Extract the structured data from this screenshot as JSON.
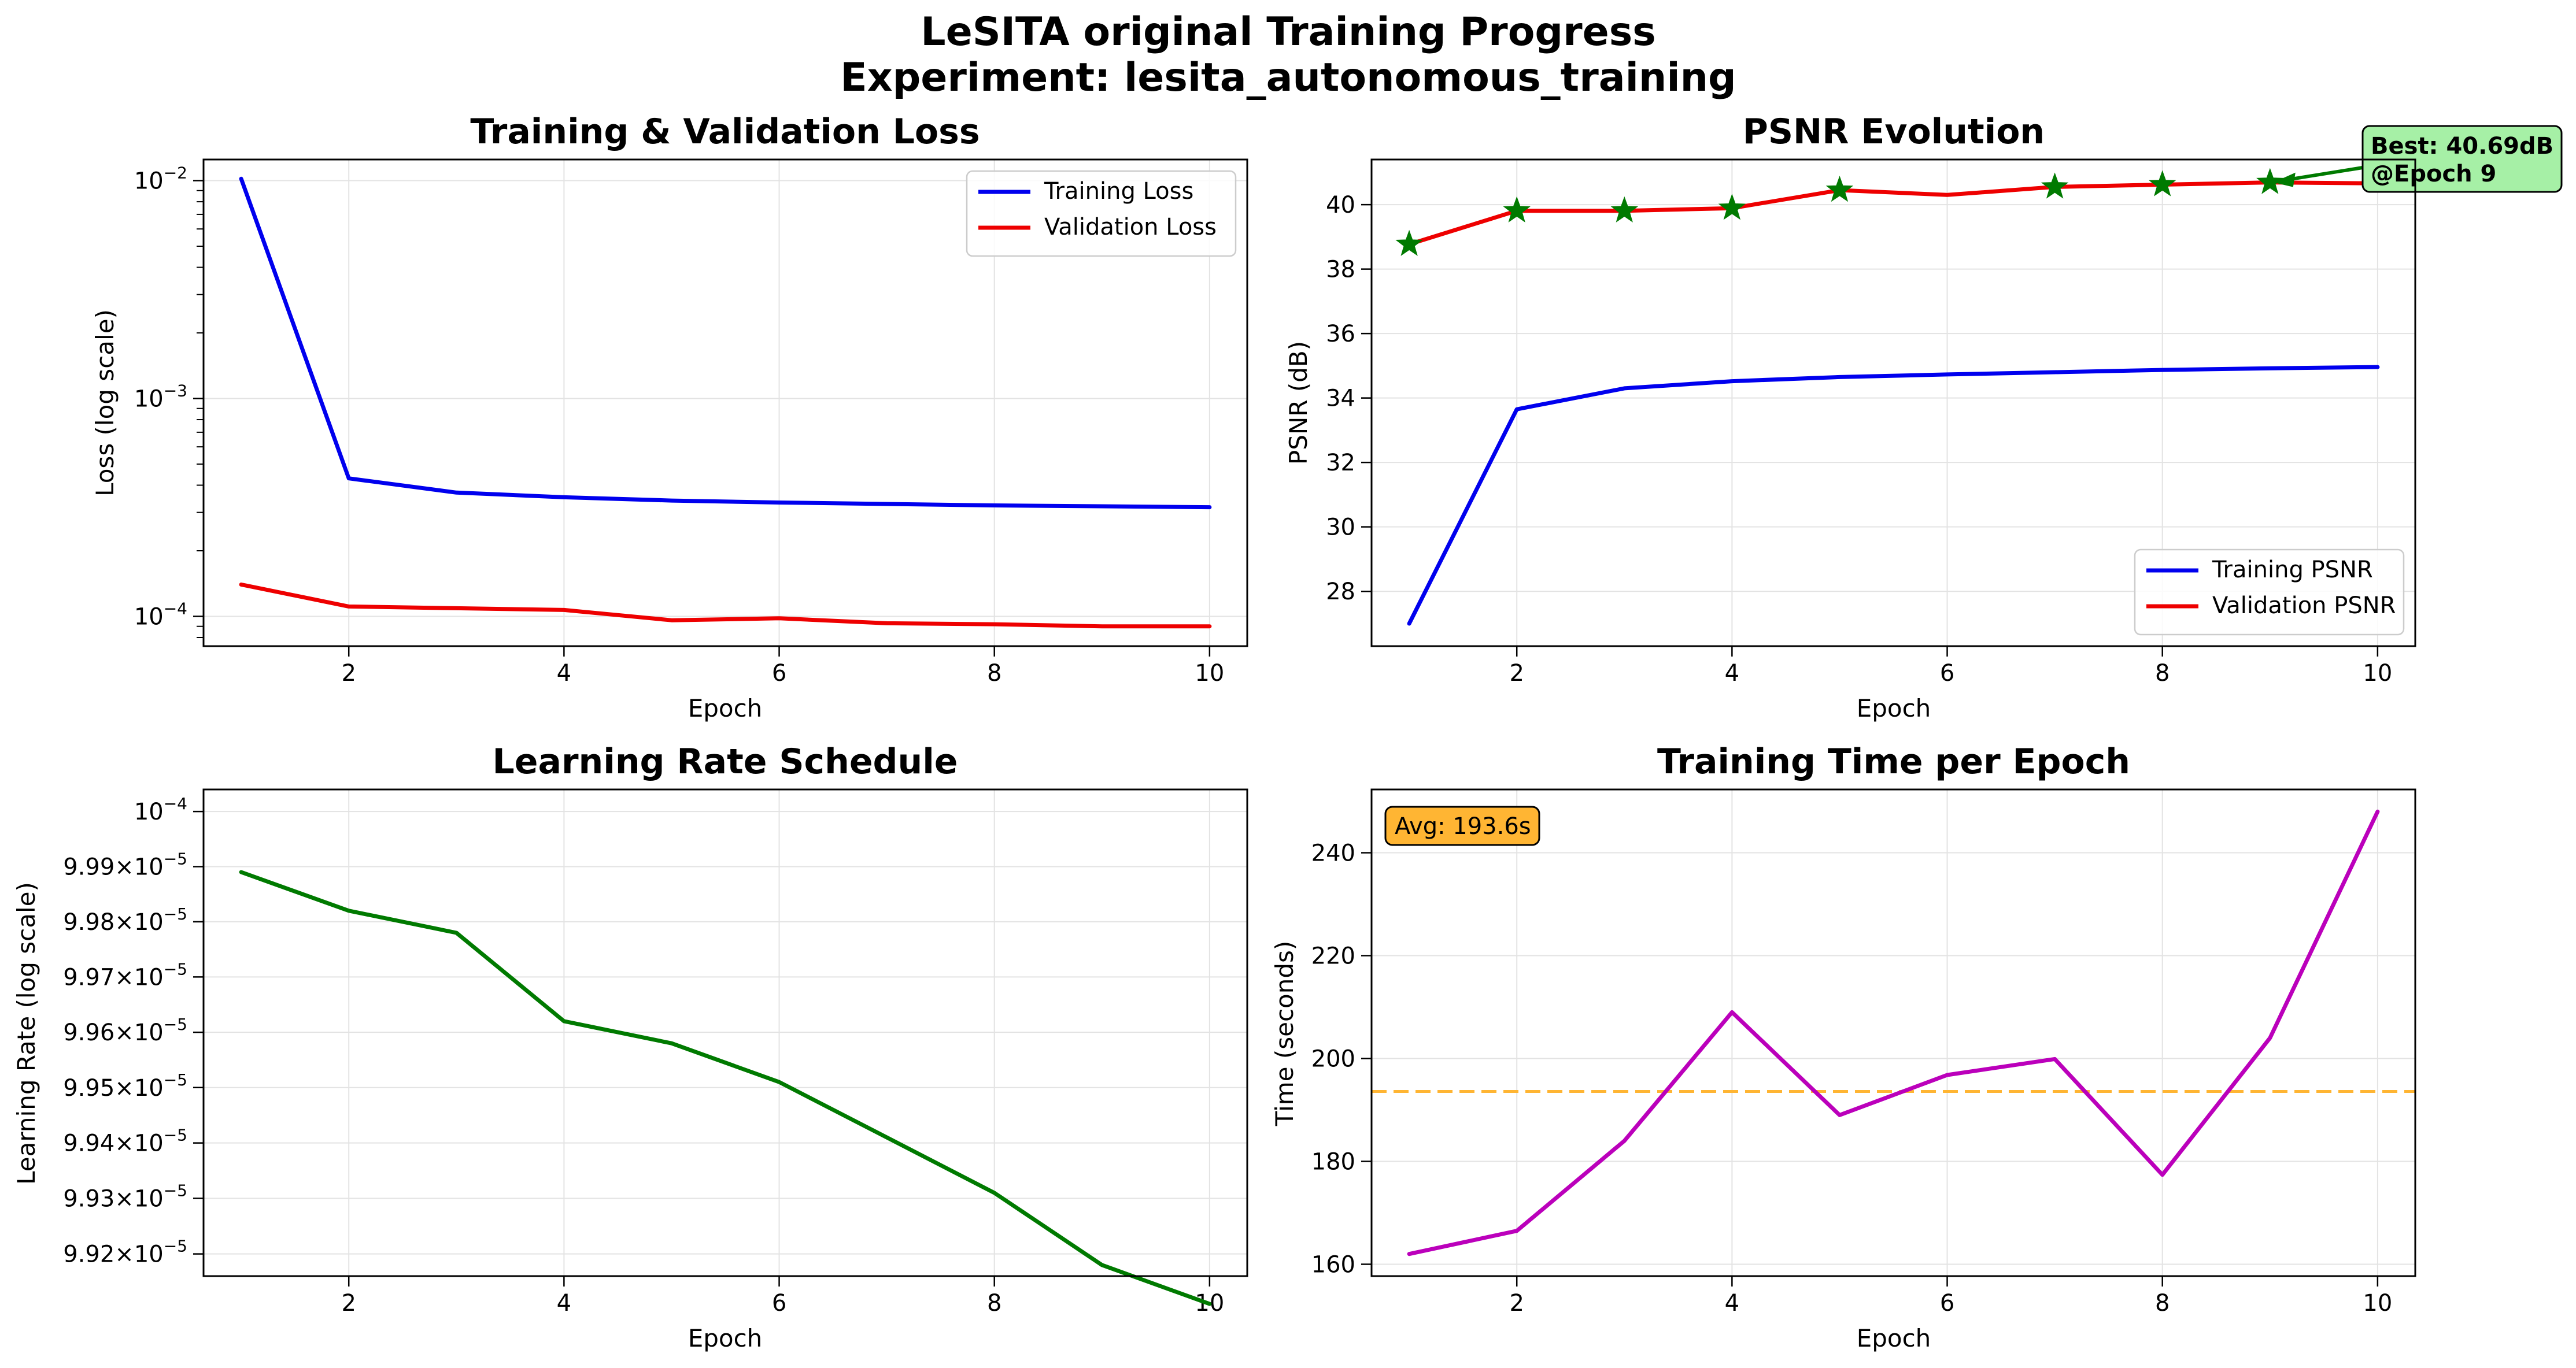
{
  "figure": {
    "title_line1": "LeSITA original Training Progress",
    "title_line2": "Experiment: lesita_autonomous_training"
  },
  "chart_data": [
    {
      "id": "loss",
      "type": "line",
      "title": "Training & Validation Loss",
      "xlabel": "Epoch",
      "ylabel": "Loss (log scale)",
      "yscale": "log",
      "xlim": [
        0.65,
        10.35
      ],
      "ylim": [
        7.3e-05,
        0.0125
      ],
      "xticks": [
        2,
        4,
        6,
        8,
        10
      ],
      "yticks": [
        {
          "value": 0.0001,
          "base": "10",
          "exp": "−4"
        },
        {
          "value": 0.001,
          "base": "10",
          "exp": "−3"
        },
        {
          "value": 0.01,
          "base": "10",
          "exp": "−2"
        }
      ],
      "grid": true,
      "legend_position": "top-right",
      "x": [
        1,
        2,
        3,
        4,
        5,
        6,
        7,
        8,
        9,
        10
      ],
      "series": [
        {
          "name": "Training Loss",
          "color": "#0000ee",
          "values": [
            0.0102,
            0.00043,
            0.00037,
            0.000352,
            0.00034,
            0.000333,
            0.000328,
            0.000323,
            0.00032,
            0.000317
          ]
        },
        {
          "name": "Validation Loss",
          "color": "#ee0000",
          "values": [
            0.00014,
            0.000111,
            0.000109,
            0.000107,
            9.6e-05,
            9.8e-05,
            9.3e-05,
            9.2e-05,
            9e-05,
            9e-05
          ]
        }
      ]
    },
    {
      "id": "psnr",
      "type": "line",
      "title": "PSNR Evolution",
      "xlabel": "Epoch",
      "ylabel": "PSNR (dB)",
      "xlim": [
        0.65,
        10.35
      ],
      "ylim": [
        26.3,
        41.4
      ],
      "xticks": [
        2,
        4,
        6,
        8,
        10
      ],
      "yticks": [
        28,
        30,
        32,
        34,
        36,
        38,
        40
      ],
      "grid": true,
      "legend_position": "bottom-right",
      "x": [
        1,
        2,
        3,
        4,
        5,
        6,
        7,
        8,
        9,
        10
      ],
      "series": [
        {
          "name": "Training PSNR",
          "color": "#0000ee",
          "values": [
            27.0,
            33.65,
            34.3,
            34.52,
            34.65,
            34.73,
            34.8,
            34.87,
            34.92,
            34.96
          ]
        },
        {
          "name": "Validation PSNR",
          "color": "#ee0000",
          "values": [
            38.77,
            39.81,
            39.81,
            39.89,
            40.45,
            40.3,
            40.55,
            40.62,
            40.69,
            40.66
          ]
        }
      ],
      "markers": {
        "color": "#007a00",
        "shape": "star",
        "points": [
          [
            1,
            38.77
          ],
          [
            2,
            39.81
          ],
          [
            3,
            39.81
          ],
          [
            4,
            39.89
          ],
          [
            5,
            40.45
          ],
          [
            7,
            40.55
          ],
          [
            8,
            40.62
          ],
          [
            9,
            40.69
          ]
        ]
      },
      "annotation": {
        "line1": "Best: 40.69dB",
        "line2": "@Epoch 9",
        "point": [
          9,
          40.69
        ],
        "box_color": "#a6f0a6",
        "arrow_color": "#007a00"
      }
    },
    {
      "id": "lr",
      "type": "line",
      "title": "Learning Rate Schedule",
      "xlabel": "Epoch",
      "ylabel": "Learning Rate (log scale)",
      "yscale": "log",
      "xlim": [
        0.65,
        10.35
      ],
      "ylim": [
        9.916e-05,
        0.00010004
      ],
      "xticks": [
        2,
        4,
        6,
        8,
        10
      ],
      "yticks": [
        {
          "value": 9.92e-05,
          "mant": "9.92",
          "base": "10",
          "exp": "−5"
        },
        {
          "value": 9.93e-05,
          "mant": "9.93",
          "base": "10",
          "exp": "−5"
        },
        {
          "value": 9.94e-05,
          "mant": "9.94",
          "base": "10",
          "exp": "−5"
        },
        {
          "value": 9.95e-05,
          "mant": "9.95",
          "base": "10",
          "exp": "−5"
        },
        {
          "value": 9.96e-05,
          "mant": "9.96",
          "base": "10",
          "exp": "−5"
        },
        {
          "value": 9.97e-05,
          "mant": "9.97",
          "base": "10",
          "exp": "−5"
        },
        {
          "value": 9.98e-05,
          "mant": "9.98",
          "base": "10",
          "exp": "−5"
        },
        {
          "value": 9.99e-05,
          "mant": "9.99",
          "base": "10",
          "exp": "−5"
        },
        {
          "value": 0.0001,
          "mant": "",
          "base": "10",
          "exp": "−4"
        }
      ],
      "grid": true,
      "x": [
        1,
        2,
        3,
        4,
        5,
        6,
        7,
        8,
        9,
        10
      ],
      "series": [
        {
          "color": "#007a00",
          "values": [
            9.989e-05,
            9.982e-05,
            9.978e-05,
            9.962e-05,
            9.958e-05,
            9.951e-05,
            9.941e-05,
            9.931e-05,
            9.918e-05,
            9.911e-05
          ]
        }
      ]
    },
    {
      "id": "time",
      "type": "line",
      "title": "Training Time per Epoch",
      "xlabel": "Epoch",
      "ylabel": "Time (seconds)",
      "xlim": [
        0.65,
        10.35
      ],
      "ylim": [
        157.7,
        252.3
      ],
      "xticks": [
        2,
        4,
        6,
        8,
        10
      ],
      "yticks": [
        160,
        180,
        200,
        220,
        240
      ],
      "grid": true,
      "x": [
        1,
        2,
        3,
        4,
        5,
        6,
        7,
        8,
        9,
        10
      ],
      "series": [
        {
          "color": "#bb00bb",
          "values": [
            162,
            166.5,
            184,
            209,
            189,
            196.8,
            199.9,
            177.4,
            204,
            248
          ]
        }
      ],
      "average": {
        "value": 193.6,
        "label": "Avg: 193.6s",
        "color": "#ffb533"
      }
    }
  ]
}
